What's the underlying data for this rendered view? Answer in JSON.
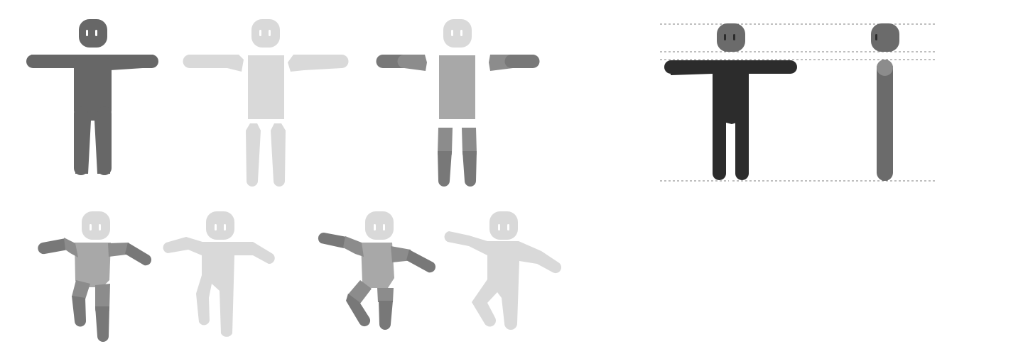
{
  "colors": {
    "background": "#ffffff",
    "eye": "#ffffff",
    "figure_dark_gray": "#676767",
    "figure_light": "#d9d9d9",
    "figure_medium": "#a8a8a8",
    "segment_shade": "#8c8c8c",
    "segment_dark": "#787878",
    "figure_black": "#2c2c2c",
    "side_view": "#6b6b6b",
    "guide_line": "#555555"
  },
  "figures": [
    {
      "id": "tpose-solid-dark",
      "style": "solid",
      "pose": "t-pose"
    },
    {
      "id": "tpose-parts-light",
      "style": "separated-parts",
      "pose": "t-pose"
    },
    {
      "id": "tpose-segmented",
      "style": "segmented-joints",
      "pose": "t-pose"
    },
    {
      "id": "walk-segmented",
      "style": "segmented-joints",
      "pose": "walking"
    },
    {
      "id": "walk-light",
      "style": "solid",
      "pose": "walking"
    },
    {
      "id": "kick-segmented",
      "style": "segmented-joints",
      "pose": "kicking"
    },
    {
      "id": "kick-light",
      "style": "solid",
      "pose": "kicking"
    },
    {
      "id": "tpose-front-proportions",
      "style": "solid",
      "pose": "t-pose",
      "view": "front"
    },
    {
      "id": "side-view-proportions",
      "style": "solid",
      "pose": "standing",
      "view": "side"
    }
  ],
  "proportion_guides": {
    "count": 4,
    "style": "dashed"
  }
}
